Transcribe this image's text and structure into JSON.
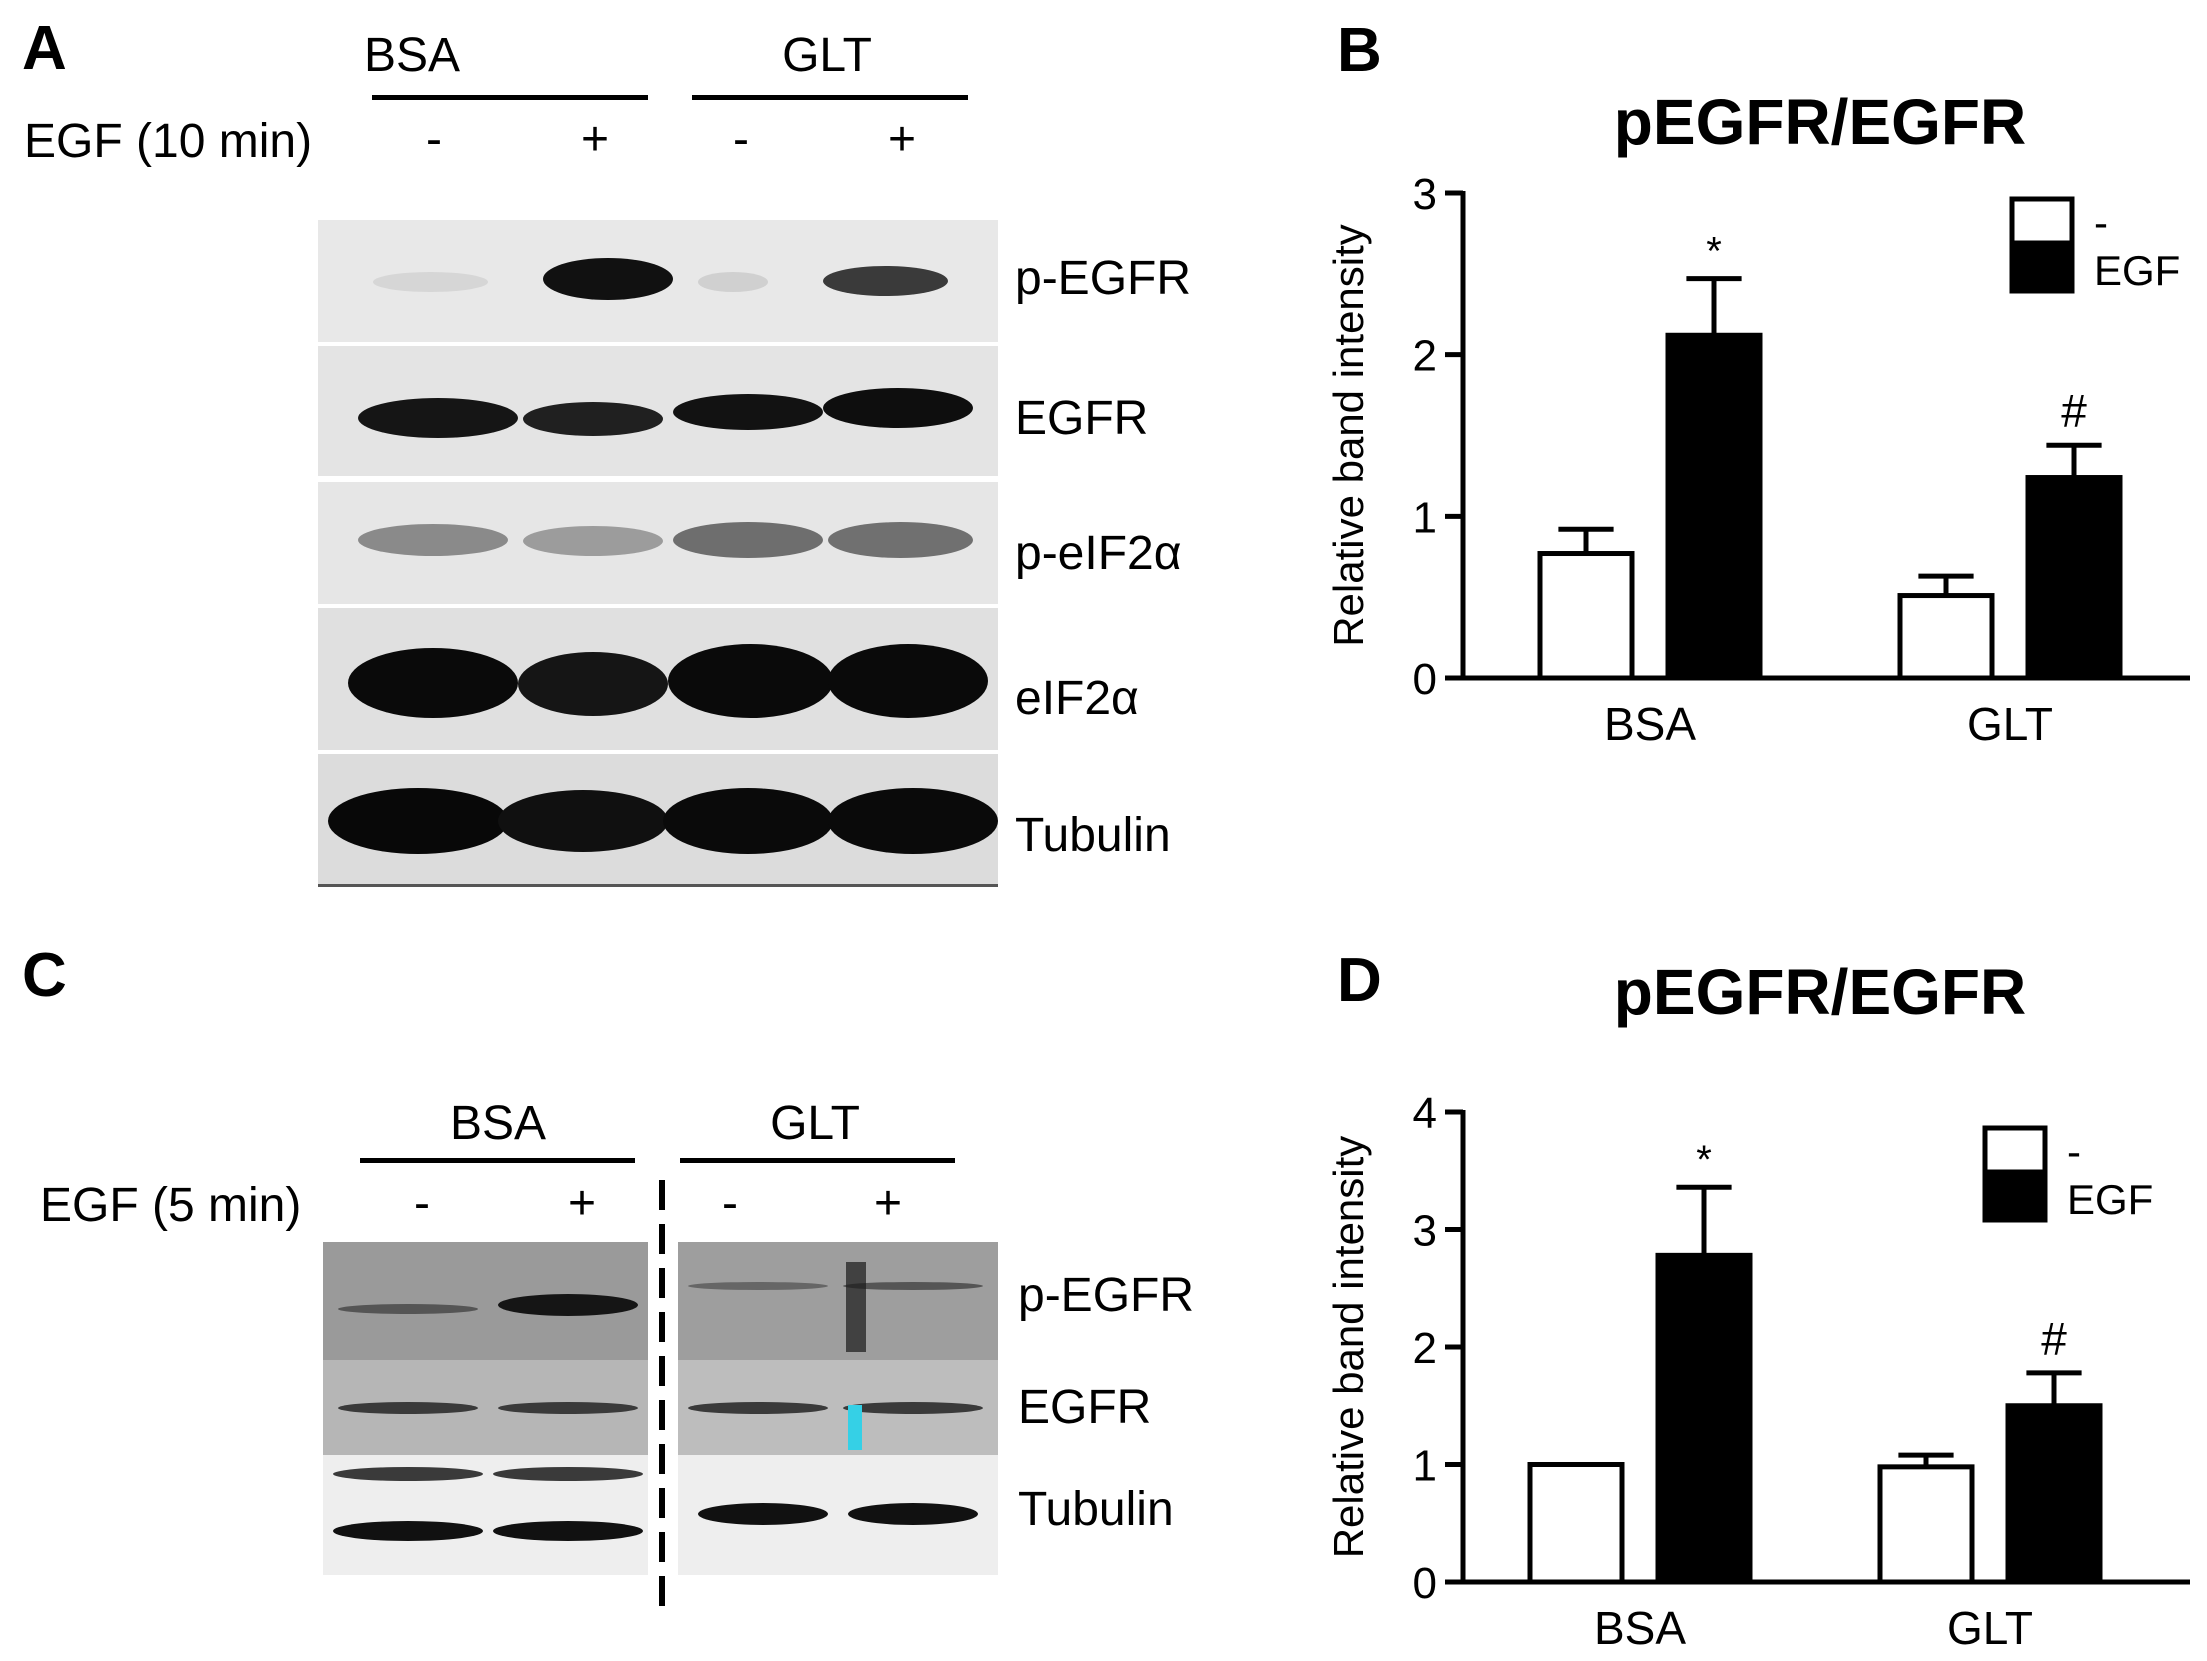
{
  "panels": {
    "A": {
      "letter": "A",
      "groups": [
        "BSA",
        "GLT"
      ],
      "treatment_label": "EGF (10 min)",
      "lane_signs": [
        "-",
        "+",
        "-",
        "+"
      ],
      "blot_labels": [
        "p-EGFR",
        "EGFR",
        "p-eIF2α",
        "eIF2α",
        "Tubulin"
      ]
    },
    "B": {
      "letter": "B"
    },
    "C": {
      "letter": "C",
      "groups": [
        "BSA",
        "GLT"
      ],
      "treatment_label": "EGF (5 min)",
      "lane_signs": [
        "-",
        "+",
        "-",
        "+"
      ],
      "blot_labels": [
        "p-EGFR",
        "EGFR",
        "Tubulin"
      ]
    },
    "D": {
      "letter": "D"
    }
  },
  "chart_data": [
    {
      "panel": "B",
      "type": "bar",
      "title": "pEGFR/EGFR",
      "ylabel": "Relative band intensity",
      "xlabel": "",
      "ylim": [
        0,
        3
      ],
      "yticks": [
        0,
        1,
        2,
        3
      ],
      "categories": [
        "BSA",
        "GLT"
      ],
      "series": [
        {
          "name": "-",
          "color": "#ffffff",
          "values": [
            0.77,
            0.51
          ],
          "errors": [
            0.15,
            0.12
          ]
        },
        {
          "name": "EGF",
          "color": "#000000",
          "values": [
            2.12,
            1.24
          ],
          "errors": [
            0.35,
            0.2
          ]
        }
      ],
      "annotations": [
        {
          "category": "BSA",
          "series": "EGF",
          "text": "*"
        },
        {
          "category": "GLT",
          "series": "EGF",
          "text": "#"
        }
      ],
      "legend": "top-right"
    },
    {
      "panel": "D",
      "type": "bar",
      "title": "pEGFR/EGFR",
      "ylabel": "Relative band intensity",
      "xlabel": "",
      "ylim": [
        0,
        4
      ],
      "yticks": [
        0,
        1,
        2,
        3,
        4
      ],
      "categories": [
        "BSA",
        "GLT"
      ],
      "series": [
        {
          "name": "-",
          "color": "#ffffff",
          "values": [
            1.0,
            0.98
          ],
          "errors": [
            0.0,
            0.1
          ]
        },
        {
          "name": "EGF",
          "color": "#000000",
          "values": [
            2.78,
            1.5
          ],
          "errors": [
            0.58,
            0.28
          ]
        }
      ],
      "annotations": [
        {
          "category": "BSA",
          "series": "EGF",
          "text": "*"
        },
        {
          "category": "GLT",
          "series": "EGF",
          "text": "#"
        }
      ],
      "legend": "top-right"
    }
  ]
}
